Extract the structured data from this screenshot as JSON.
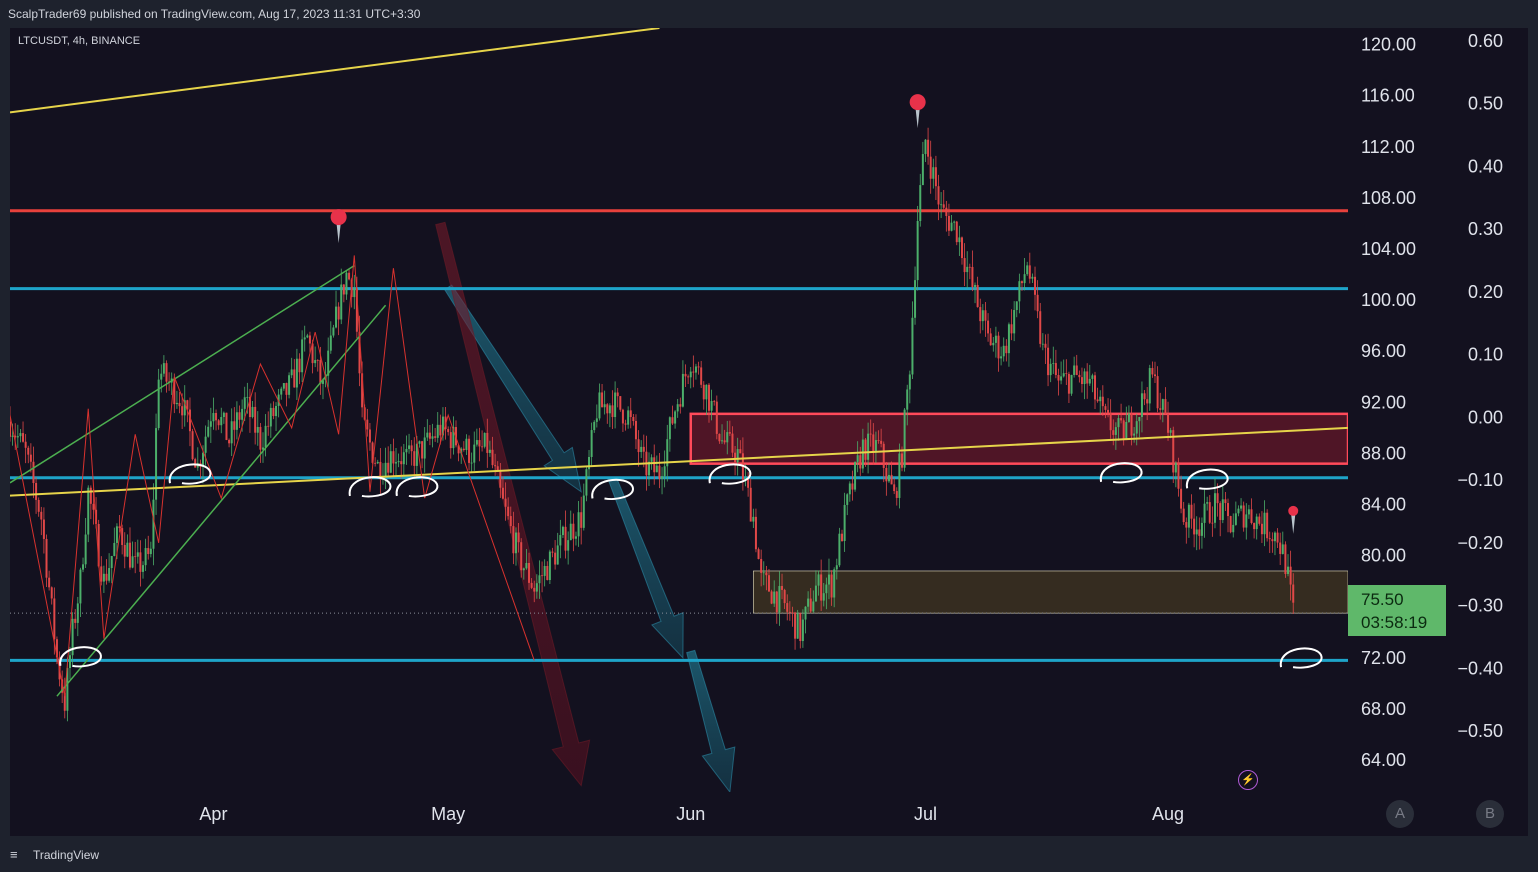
{
  "header": {
    "published_text": "ScalpTrader69 published on TradingView.com, Aug 17, 2023 11:31 UTC+3:30"
  },
  "symbol": {
    "text": "LTCUSDT, 4h, BINANCE"
  },
  "footer": {
    "brand": "TradingView",
    "logo_icon": "tradingview-logo-icon",
    "button_a": "A",
    "button_b": "B"
  },
  "price_tag": {
    "price": "75.50",
    "countdown": "03:58:19"
  },
  "colors": {
    "background": "#13111f",
    "frame": "#1e222d",
    "red_level": "#e8413c",
    "cyan_level": "#1ea4c9",
    "yellow_trend": "#e6d44a",
    "green_channel": "#4caf50",
    "zigzag": "#d8322e",
    "supply_zone": "#5a1628",
    "demand_zone": "#3a3020",
    "price_tag": "#5fb86a"
  },
  "chart_data": {
    "type": "line",
    "xlabel": "",
    "ylabel": "",
    "x_ticks": [
      "Apr",
      "May",
      "Jun",
      "Jul",
      "Aug"
    ],
    "y_ticks_left": [
      "120.00",
      "116.00",
      "112.00",
      "108.00",
      "104.00",
      "100.00",
      "96.00",
      "92.00",
      "88.00",
      "84.00",
      "80.00",
      "72.00",
      "68.00",
      "64.00"
    ],
    "y_ticks_right": [
      "0.60",
      "0.50",
      "0.40",
      "0.30",
      "0.20",
      "0.10",
      "0.00",
      "−0.10",
      "−0.20",
      "−0.30",
      "−0.40",
      "−0.50"
    ],
    "ylim": [
      61.5,
      121.3
    ],
    "x_range": [
      "2023-03-06",
      "2023-08-24"
    ],
    "grid": false,
    "horizontal_levels": [
      {
        "price": 107.0,
        "color": "red"
      },
      {
        "price": 100.9,
        "color": "cyan"
      },
      {
        "price": 86.1,
        "color": "cyan"
      },
      {
        "price": 71.8,
        "color": "cyan"
      }
    ],
    "zones": [
      {
        "name": "supply",
        "from": "2023-06-01",
        "to": "2023-08-24",
        "low": 87.2,
        "high": 91.1
      },
      {
        "name": "demand",
        "from": "2023-06-09",
        "to": "2023-08-24",
        "low": 75.5,
        "high": 78.8
      }
    ],
    "trendlines": [
      {
        "color": "yellow",
        "from": [
          "2023-03-06",
          84.7
        ],
        "to": [
          "2023-08-24",
          90.0
        ]
      },
      {
        "color": "yellow",
        "from": [
          "2023-03-06",
          114.7
        ],
        "to": [
          "2023-05-28",
          121.3
        ]
      },
      {
        "color": "green",
        "from": [
          "2023-03-12",
          69.0
        ],
        "to": [
          "2023-04-23",
          99.6
        ]
      },
      {
        "color": "green",
        "from": [
          "2023-03-06",
          85.7
        ],
        "to": [
          "2023-04-19",
          102.7
        ]
      }
    ],
    "price_path": [
      [
        "2023-03-06",
        90.5
      ],
      [
        "2023-03-08",
        88.0
      ],
      [
        "2023-03-10",
        83.0
      ],
      [
        "2023-03-12",
        72.0
      ],
      [
        "2023-03-13",
        68.5
      ],
      [
        "2023-03-14",
        74.0
      ],
      [
        "2023-03-15",
        78.0
      ],
      [
        "2023-03-16",
        85.0
      ],
      [
        "2023-03-18",
        78.0
      ],
      [
        "2023-03-20",
        82.0
      ],
      [
        "2023-03-22",
        79.0
      ],
      [
        "2023-03-24",
        80.0
      ],
      [
        "2023-03-25",
        94.5
      ],
      [
        "2023-03-27",
        93.0
      ],
      [
        "2023-03-28",
        92.0
      ],
      [
        "2023-03-30",
        87.0
      ],
      [
        "2023-04-01",
        92.0
      ],
      [
        "2023-04-03",
        89.0
      ],
      [
        "2023-04-05",
        92.0
      ],
      [
        "2023-04-07",
        89.0
      ],
      [
        "2023-04-09",
        91.5
      ],
      [
        "2023-04-11",
        93.5
      ],
      [
        "2023-04-13",
        97.0
      ],
      [
        "2023-04-15",
        93.0
      ],
      [
        "2023-04-17",
        99.5
      ],
      [
        "2023-04-18",
        102.0
      ],
      [
        "2023-04-19",
        101.0
      ],
      [
        "2023-04-20",
        90.5
      ],
      [
        "2023-04-22",
        87.0
      ],
      [
        "2023-04-24",
        88.0
      ],
      [
        "2023-04-26",
        87.5
      ],
      [
        "2023-04-28",
        88.5
      ],
      [
        "2023-04-30",
        90.0
      ],
      [
        "2023-05-02",
        89.0
      ],
      [
        "2023-05-04",
        88.0
      ],
      [
        "2023-05-06",
        88.5
      ],
      [
        "2023-05-08",
        84.0
      ],
      [
        "2023-05-10",
        80.0
      ],
      [
        "2023-05-12",
        77.5
      ],
      [
        "2023-05-14",
        79.5
      ],
      [
        "2023-05-16",
        81.5
      ],
      [
        "2023-05-18",
        83.0
      ],
      [
        "2023-05-20",
        91.5
      ],
      [
        "2023-05-22",
        92.0
      ],
      [
        "2023-05-24",
        91.0
      ],
      [
        "2023-05-26",
        87.0
      ],
      [
        "2023-05-28",
        86.5
      ],
      [
        "2023-05-30",
        91.5
      ],
      [
        "2023-06-01",
        95.5
      ],
      [
        "2023-06-03",
        93.0
      ],
      [
        "2023-06-05",
        89.0
      ],
      [
        "2023-06-07",
        88.0
      ],
      [
        "2023-06-09",
        83.0
      ],
      [
        "2023-06-10",
        78.0
      ],
      [
        "2023-06-11",
        77.5
      ],
      [
        "2023-06-13",
        76.0
      ],
      [
        "2023-06-15",
        74.0
      ],
      [
        "2023-06-17",
        77.5
      ],
      [
        "2023-06-19",
        77.8
      ],
      [
        "2023-06-21",
        84.0
      ],
      [
        "2023-06-23",
        88.5
      ],
      [
        "2023-06-25",
        88.5
      ],
      [
        "2023-06-27",
        84.5
      ],
      [
        "2023-06-28",
        88.0
      ],
      [
        "2023-06-29",
        95.0
      ],
      [
        "2023-06-30",
        106.5
      ],
      [
        "2023-07-01",
        112.5
      ],
      [
        "2023-07-03",
        107.0
      ],
      [
        "2023-07-05",
        105.5
      ],
      [
        "2023-07-07",
        101.0
      ],
      [
        "2023-07-09",
        97.0
      ],
      [
        "2023-07-11",
        96.0
      ],
      [
        "2023-07-13",
        100.5
      ],
      [
        "2023-07-14",
        103.0
      ],
      [
        "2023-07-16",
        96.0
      ],
      [
        "2023-07-18",
        93.5
      ],
      [
        "2023-07-20",
        94.0
      ],
      [
        "2023-07-22",
        93.5
      ],
      [
        "2023-07-24",
        90.5
      ],
      [
        "2023-07-26",
        89.5
      ],
      [
        "2023-07-28",
        91.0
      ],
      [
        "2023-07-30",
        94.0
      ],
      [
        "2023-08-01",
        90.0
      ],
      [
        "2023-08-03",
        83.0
      ],
      [
        "2023-08-05",
        82.5
      ],
      [
        "2023-08-07",
        84.0
      ],
      [
        "2023-08-09",
        82.5
      ],
      [
        "2023-08-11",
        83.5
      ],
      [
        "2023-08-13",
        82.5
      ],
      [
        "2023-08-15",
        81.5
      ],
      [
        "2023-08-16",
        79.5
      ],
      [
        "2023-08-17",
        75.5
      ]
    ],
    "zigzag": [
      [
        "2023-03-06",
        91.0
      ],
      [
        "2023-03-13",
        69.0
      ],
      [
        "2023-03-16",
        91.5
      ],
      [
        "2023-03-18",
        73.5
      ],
      [
        "2023-03-22",
        89.5
      ],
      [
        "2023-03-25",
        81.0
      ],
      [
        "2023-03-27",
        94.0
      ],
      [
        "2023-04-02",
        84.5
      ],
      [
        "2023-04-07",
        95.0
      ],
      [
        "2023-04-11",
        90.0
      ],
      [
        "2023-04-14",
        97.5
      ],
      [
        "2023-04-17",
        89.5
      ],
      [
        "2023-04-19",
        103.5
      ],
      [
        "2023-04-21",
        85.0
      ],
      [
        "2023-04-24",
        102.5
      ],
      [
        "2023-04-28",
        84.5
      ],
      [
        "2023-05-01",
        91.0
      ],
      [
        "2023-05-12",
        71.8
      ]
    ],
    "markers": [
      {
        "date": "2023-04-17",
        "price": 106.5,
        "type": "pin"
      },
      {
        "date": "2023-06-30",
        "price": 115.5,
        "type": "pin"
      },
      {
        "date": "2023-08-17",
        "price": 83.5,
        "type": "pin"
      }
    ],
    "support_markers": [
      [
        "2023-03-29",
        86.3
      ],
      [
        "2023-04-21",
        85.3
      ],
      [
        "2023-04-27",
        85.3
      ],
      [
        "2023-05-22",
        85.1
      ],
      [
        "2023-06-06",
        86.3
      ],
      [
        "2023-07-26",
        86.4
      ],
      [
        "2023-08-06",
        85.9
      ],
      [
        "2023-03-15",
        72.0
      ],
      [
        "2023-08-18",
        71.9
      ]
    ],
    "arrows": [
      {
        "from": [
          "2023-05-01",
          101.0
        ],
        "to": [
          "2023-05-18",
          85.0
        ],
        "color": "teal"
      },
      {
        "from": [
          "2023-05-22",
          86.0
        ],
        "to": [
          "2023-05-31",
          72.0
        ],
        "color": "teal"
      },
      {
        "from": [
          "2023-04-30",
          106.0
        ],
        "to": [
          "2023-05-18",
          62.0
        ],
        "color": "maroon"
      },
      {
        "from": [
          "2023-06-01",
          72.5
        ],
        "to": [
          "2023-06-06",
          61.5
        ],
        "color": "teal"
      }
    ],
    "last_price": 75.5
  }
}
